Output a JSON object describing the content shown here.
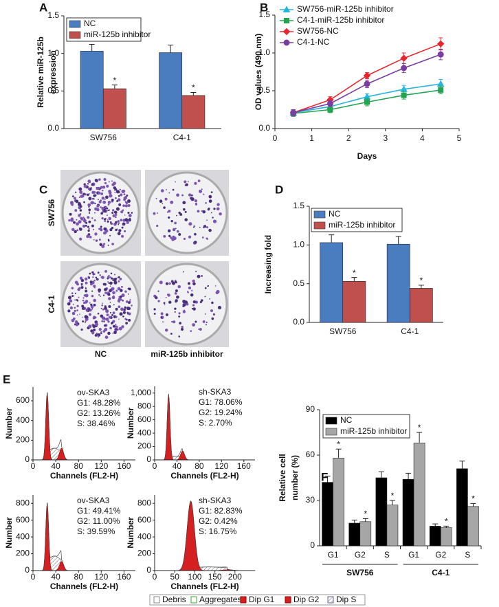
{
  "chart_data": [
    {
      "type": "bar",
      "panel": "A",
      "ylabel": [
        "Relative miR-125b",
        "expression"
      ],
      "categories": [
        "SW756",
        "C4-1"
      ],
      "series": [
        {
          "name": "NC",
          "color": "#4a7cc0",
          "values": [
            1.03,
            1.01
          ],
          "errors": [
            0.09,
            0.1
          ]
        },
        {
          "name": "miR-125b inhibitor",
          "color": "#c0504d",
          "values": [
            0.53,
            0.44
          ],
          "errors": [
            0.05,
            0.04
          ],
          "annotation": "*"
        }
      ],
      "ylim": [
        0,
        1.5
      ],
      "yticks": [
        {
          "value": 0,
          "label": "0.0"
        },
        {
          "value": 0.5,
          "label": "0.5"
        },
        {
          "value": 1,
          "label": "1.0"
        },
        {
          "value": 1.5,
          "label": "1.5"
        }
      ],
      "grid": false
    },
    {
      "type": "line",
      "panel": "B",
      "xlabel": "Days",
      "ylabel": [
        "OD values (490 nm)"
      ],
      "x": [
        0.5,
        1.5,
        2.5,
        3.5,
        4.5
      ],
      "series": [
        {
          "name": "SW756-miR-125b inhibitor",
          "color": "#27b5e0",
          "marker": "triangle",
          "values": [
            0.21,
            0.29,
            0.42,
            0.52,
            0.59
          ],
          "errors": [
            0.04,
            0.04,
            0.04,
            0.05,
            0.06
          ]
        },
        {
          "name": "C4-1-miR-125b inhibitor",
          "color": "#22a350",
          "marker": "square",
          "values": [
            0.2,
            0.25,
            0.35,
            0.44,
            0.51
          ],
          "errors": [
            0.04,
            0.04,
            0.05,
            0.05,
            0.05
          ]
        },
        {
          "name": "SW756-NC",
          "color": "#e8262d",
          "marker": "diamond",
          "values": [
            0.21,
            0.38,
            0.7,
            0.93,
            1.12
          ],
          "errors": [
            0.04,
            0.04,
            0.04,
            0.07,
            0.08
          ]
        },
        {
          "name": "C4-1-NC",
          "color": "#7a3ea0",
          "marker": "circle",
          "values": [
            0.21,
            0.33,
            0.59,
            0.8,
            0.98
          ],
          "errors": [
            0.04,
            0.04,
            0.05,
            0.06,
            0.07
          ]
        }
      ],
      "xlim": [
        0,
        5
      ],
      "xticks": [
        0,
        1,
        2,
        3,
        4,
        5
      ],
      "ylim": [
        0,
        1.5
      ],
      "yticks": [
        {
          "value": 0,
          "label": "0.0"
        },
        {
          "value": 0.5,
          "label": "0.5"
        },
        {
          "value": 1,
          "label": "1.0"
        },
        {
          "value": 1.5,
          "label": "1.5"
        }
      ],
      "grid": false
    },
    {
      "type": "bar",
      "panel": "D",
      "ylabel": [
        "Increasing fold"
      ],
      "categories": [
        "SW756",
        "C4-1"
      ],
      "series": [
        {
          "name": "NC",
          "color": "#4a7cc0",
          "values": [
            1.03,
            1.01
          ],
          "errors": [
            0.1,
            0.1
          ]
        },
        {
          "name": "miR-125b inhibitor",
          "color": "#c0504d",
          "values": [
            0.53,
            0.44
          ],
          "errors": [
            0.05,
            0.04
          ],
          "annotation": "*"
        }
      ],
      "ylim": [
        0,
        1.5
      ],
      "yticks": [
        {
          "value": 0,
          "label": "0.0"
        },
        {
          "value": 0.5,
          "label": "0.5"
        },
        {
          "value": 1,
          "label": "1.0"
        },
        {
          "value": 1.5,
          "label": "1.5"
        }
      ],
      "grid": false
    },
    {
      "type": "bar",
      "panel": "F",
      "ylabel": [
        "Relative cell",
        "number (%)"
      ],
      "categories": [
        "G1",
        "G2",
        "S",
        "G1",
        "G2",
        "S"
      ],
      "groups": [
        "SW756",
        "C4-1"
      ],
      "series": [
        {
          "name": "NC",
          "color": "#000000",
          "values": [
            42,
            15,
            45,
            44,
            13,
            51
          ],
          "errors": [
            4,
            2,
            4,
            4,
            1.5,
            5
          ]
        },
        {
          "name": "miR-125b inhibitor",
          "color": "#a6a6a6",
          "values": [
            58,
            16,
            27,
            68,
            12,
            26
          ],
          "errors": [
            6,
            2,
            3,
            7,
            1,
            2
          ],
          "annotation": "*"
        }
      ],
      "ylim": [
        0,
        90
      ],
      "yticks": [
        0,
        30,
        60,
        90
      ],
      "grid": false
    }
  ],
  "panel_c": {
    "panel": "C",
    "rows": [
      "SW756",
      "C4-1"
    ],
    "columns": [
      "NC",
      "miR-125b inhibitor"
    ]
  },
  "panel_e": {
    "panel": "E",
    "xlabel": "Channels (FL2-H)",
    "ylabel": "Number",
    "plots": [
      {
        "title": "ov-SKA3",
        "stats": [
          "G1: 48.28%",
          "G2: 13.26%",
          "S: 38.46%"
        ],
        "xlim": [
          0,
          180
        ],
        "xticks": [
          0,
          40,
          80,
          120,
          160
        ],
        "ylim": [
          0,
          740
        ],
        "yticks": [
          0,
          200,
          400,
          600
        ]
      },
      {
        "title": "sh-SKA3",
        "stats": [
          "G1: 78.06%",
          "G2: 19.24%",
          "S: 2.70%"
        ],
        "xlim": [
          0,
          180
        ],
        "xticks": [
          0,
          40,
          80,
          120,
          160
        ],
        "ylim": [
          0,
          1100
        ],
        "yticks": [
          0,
          200,
          400,
          600,
          800,
          {
            "value": 1000,
            "label": "1,000"
          }
        ]
      },
      {
        "title": "ov-SKA3",
        "stats": [
          "G1: 49.41%",
          "G2: 11.00%",
          "S: 39.59%"
        ],
        "xlim": [
          0,
          180
        ],
        "xticks": [
          0,
          40,
          80,
          120,
          160
        ],
        "ylim": [
          0,
          900
        ],
        "yticks": [
          0,
          200,
          400,
          600,
          800
        ]
      },
      {
        "title": "sh-SKA3",
        "stats": [
          "G1: 82.83%",
          "G2: 0.42%",
          "S: 16.75%"
        ],
        "xlim": [
          0,
          250
        ],
        "xticks": [
          0,
          50,
          100,
          150,
          200
        ],
        "ylim": [
          0,
          900
        ],
        "yticks": [
          0,
          200,
          400,
          600,
          800
        ]
      }
    ],
    "legend": [
      "Debris",
      "Aggregates",
      "Dip G1",
      "Dip G2",
      "Dip S"
    ]
  }
}
